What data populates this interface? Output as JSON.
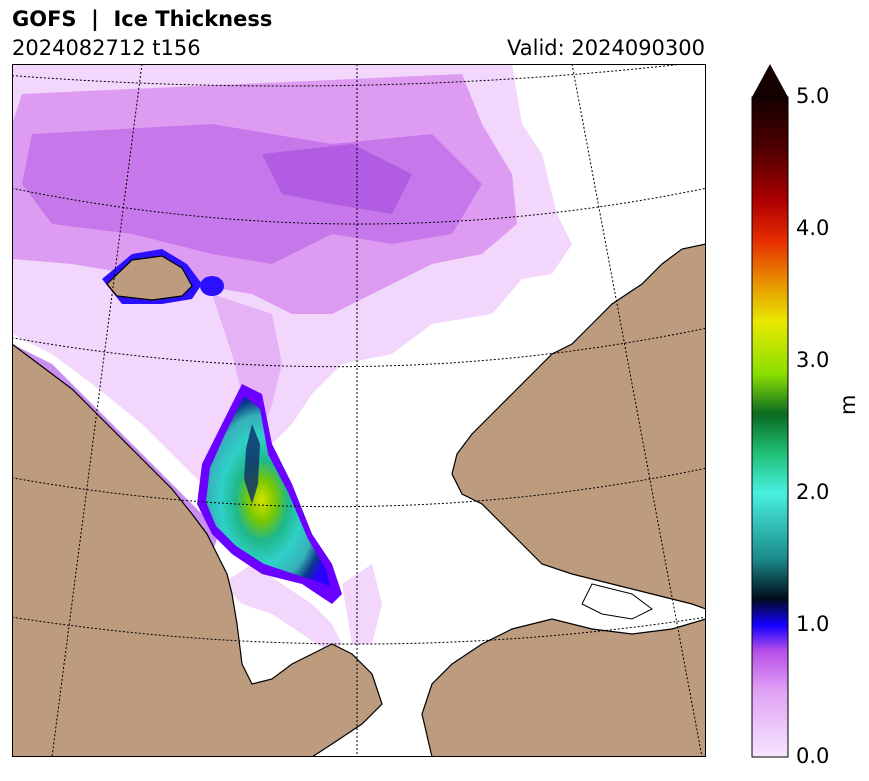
{
  "header": {
    "title": "GOFS  |  Ice Thickness",
    "run": "2024082712 t156",
    "valid": "Valid: 2024090300"
  },
  "colorbar": {
    "ticks": [
      "0.0",
      "1.0",
      "2.0",
      "3.0",
      "4.0",
      "5.0"
    ],
    "unit": "m",
    "range": [
      0,
      5
    ],
    "extend": "max"
  },
  "colors": {
    "land": "#bd9b7e",
    "water": "#ffffff",
    "graticule": "#000000"
  }
}
